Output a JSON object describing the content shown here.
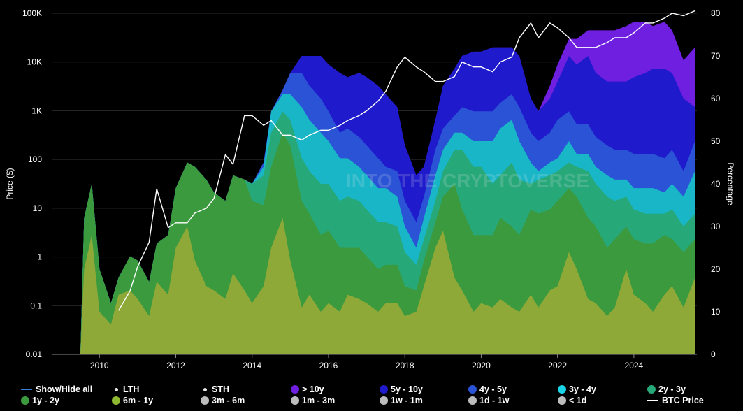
{
  "chart_data": {
    "type": "area",
    "y_left_label": "Price ($)",
    "y_right_label": "Percentage",
    "x_ticks": [
      "2010",
      "2012",
      "2014",
      "2016",
      "2018",
      "2020",
      "2022",
      "2024"
    ],
    "y_left_ticks": [
      "0.01",
      "0.1",
      "1",
      "10",
      "100",
      "1K",
      "10K",
      "100K"
    ],
    "y_right_ticks": [
      "0",
      "10",
      "20",
      "30",
      "40",
      "50",
      "60",
      "70",
      "80"
    ],
    "x_range": [
      2008.75,
      2025.65
    ],
    "y_right_range": [
      0,
      80
    ],
    "y_left_log_range": [
      -2,
      5
    ],
    "watermark": "INTO THE CRYPTOVERSE",
    "x_years": [
      2008.75,
      2009.5,
      2009.6,
      2009.8,
      2010.0,
      2010.3,
      2010.5,
      2010.8,
      2011.0,
      2011.3,
      2011.5,
      2011.8,
      2012.0,
      2012.3,
      2012.5,
      2012.8,
      2013.0,
      2013.3,
      2013.5,
      2013.8,
      2014.0,
      2014.3,
      2014.5,
      2014.8,
      2015.0,
      2015.3,
      2015.5,
      2015.8,
      2016.0,
      2016.3,
      2016.5,
      2016.8,
      2017.0,
      2017.3,
      2017.5,
      2017.8,
      2018.0,
      2018.3,
      2018.5,
      2018.8,
      2019.0,
      2019.3,
      2019.5,
      2019.8,
      2020.0,
      2020.3,
      2020.5,
      2020.8,
      2021.0,
      2021.3,
      2021.5,
      2021.8,
      2022.0,
      2022.3,
      2022.5,
      2022.8,
      2023.0,
      2023.3,
      2023.5,
      2023.8,
      2024.0,
      2024.3,
      2024.5,
      2024.8,
      2025.0,
      2025.3,
      2025.6
    ],
    "series": [
      {
        "name": "6m - 1y",
        "color": "#8fa938",
        "values": [
          0,
          0,
          20,
          28,
          10,
          7,
          14,
          15,
          13,
          9,
          17,
          14,
          25,
          30,
          22,
          16,
          15,
          13,
          19,
          15,
          12,
          16,
          25,
          32,
          22,
          11,
          14,
          10,
          12,
          10,
          14,
          13,
          12,
          10,
          12,
          12,
          9,
          10,
          16,
          25,
          29,
          18,
          15,
          10,
          12,
          11,
          13,
          11,
          10,
          14,
          11,
          15,
          16,
          24,
          20,
          13,
          12,
          9,
          11,
          20,
          14,
          12,
          10,
          14,
          16,
          11,
          18
        ]
      },
      {
        "name": "1y - 2y",
        "color": "#3c9a3e",
        "values": [
          0,
          0,
          32,
          40,
          20,
          12,
          18,
          23,
          22,
          17,
          26,
          28,
          39,
          45,
          44,
          41,
          38,
          36,
          42,
          41,
          36,
          35,
          44,
          52,
          49,
          36,
          33,
          28,
          29,
          25,
          25,
          25,
          23,
          20,
          21,
          21,
          16,
          15,
          22,
          31,
          37,
          40,
          34,
          28,
          28,
          28,
          32,
          30,
          28,
          34,
          33,
          34,
          36,
          39,
          37,
          32,
          30,
          25,
          27,
          30,
          27,
          26,
          26,
          28,
          27,
          24,
          27
        ]
      },
      {
        "name": "2y - 3y",
        "color": "#27a878",
        "values": [
          0,
          0,
          32,
          40,
          20,
          12,
          18,
          23,
          22,
          17,
          26,
          28,
          39,
          45,
          44,
          41,
          38,
          36,
          42,
          41,
          40,
          42,
          52,
          57,
          55,
          46,
          43,
          40,
          40,
          36,
          37,
          36,
          34,
          31,
          31,
          30,
          24,
          21,
          27,
          36,
          43,
          48,
          48,
          44,
          44,
          40,
          42,
          45,
          41,
          40,
          41,
          42,
          43,
          45,
          44,
          43,
          40,
          37,
          36,
          37,
          34,
          33,
          33,
          33,
          34,
          30,
          33
        ]
      },
      {
        "name": "3y - 4y",
        "color": "#19b6c8",
        "values": [
          0,
          0,
          32,
          40,
          20,
          12,
          18,
          23,
          22,
          17,
          26,
          28,
          39,
          45,
          44,
          41,
          38,
          36,
          42,
          41,
          40,
          44,
          57,
          61,
          61,
          58,
          55,
          52,
          50,
          46,
          46,
          44,
          42,
          39,
          39,
          37,
          30,
          25,
          32,
          42,
          48,
          52,
          52,
          50,
          50,
          50,
          53,
          55,
          50,
          45,
          43,
          45,
          46,
          50,
          47,
          47,
          44,
          42,
          41,
          41,
          39,
          39,
          39,
          38,
          40,
          37,
          43
        ]
      },
      {
        "name": "4y - 5y",
        "color": "#2a53d6",
        "values": [
          0,
          0,
          32,
          40,
          20,
          12,
          18,
          23,
          22,
          17,
          26,
          28,
          39,
          45,
          44,
          41,
          38,
          36,
          42,
          41,
          40,
          45,
          57,
          62,
          66,
          66,
          63,
          60,
          57,
          52,
          53,
          51,
          49,
          46,
          44,
          43,
          36,
          31,
          37,
          48,
          53,
          56,
          58,
          57,
          57,
          57,
          59,
          61,
          58,
          52,
          50,
          52,
          55,
          57,
          54,
          54,
          51,
          49,
          48,
          48,
          47,
          47,
          47,
          46,
          48,
          43,
          50
        ]
      },
      {
        "name": "5y - 10y",
        "color": "#1f1acc",
        "values": [
          0,
          0,
          32,
          40,
          20,
          12,
          18,
          23,
          22,
          17,
          26,
          28,
          39,
          45,
          44,
          41,
          38,
          36,
          42,
          41,
          40,
          45,
          57,
          62,
          66,
          70,
          70,
          70,
          68,
          66,
          65,
          66,
          65,
          63,
          61,
          58,
          49,
          42,
          44,
          55,
          63,
          67,
          70,
          71,
          71,
          72,
          72,
          72,
          70,
          60,
          57,
          60,
          64,
          70,
          68,
          70,
          66,
          64,
          64,
          64,
          65,
          66,
          67,
          67,
          66,
          60,
          58
        ]
      },
      {
        "name": "> 10y",
        "color": "#6f1fe0",
        "values": [
          0,
          0,
          32,
          40,
          20,
          12,
          18,
          23,
          22,
          17,
          26,
          28,
          39,
          45,
          44,
          41,
          38,
          36,
          42,
          41,
          40,
          45,
          57,
          62,
          66,
          70,
          70,
          70,
          68,
          66,
          65,
          66,
          65,
          63,
          61,
          58,
          49,
          42,
          44,
          55,
          63,
          67,
          70,
          71,
          71,
          72,
          72,
          72,
          70,
          60,
          57,
          63,
          68,
          74,
          74,
          76,
          76,
          76,
          76,
          77,
          78,
          78,
          77,
          78,
          76,
          69,
          72
        ]
      }
    ],
    "btc_price_log": [
      null,
      null,
      null,
      null,
      null,
      null,
      -1.1,
      -0.7,
      -0.2,
      0.3,
      1.4,
      0.6,
      0.7,
      0.7,
      0.9,
      1.0,
      1.2,
      2.1,
      1.9,
      2.9,
      2.9,
      2.7,
      2.8,
      2.5,
      2.5,
      2.4,
      2.5,
      2.6,
      2.6,
      2.7,
      2.8,
      2.9,
      3.0,
      3.2,
      3.4,
      3.9,
      4.1,
      3.9,
      3.8,
      3.6,
      3.6,
      3.7,
      4.0,
      3.9,
      3.9,
      3.8,
      4.0,
      4.1,
      4.5,
      4.8,
      4.5,
      4.8,
      4.7,
      4.5,
      4.3,
      4.3,
      4.3,
      4.4,
      4.5,
      4.5,
      4.6,
      4.8,
      4.8,
      4.9,
      5.0,
      4.95,
      5.05
    ]
  },
  "legend": [
    {
      "label": "Show/Hide all",
      "marker": "line",
      "color": "#3a7fd5"
    },
    {
      "label": "LTH",
      "marker": "dot",
      "color": "#e8e8e8"
    },
    {
      "label": "STH",
      "marker": "dot",
      "color": "#e8e8e8"
    },
    {
      "label": "> 10y",
      "marker": "circle",
      "color": "#6f1fe0"
    },
    {
      "label": "5y - 10y",
      "marker": "circle",
      "color": "#1f1acc"
    },
    {
      "label": "4y - 5y",
      "marker": "circle",
      "color": "#2a53d6"
    },
    {
      "label": "3y - 4y",
      "marker": "circle",
      "color": "#19d4e6"
    },
    {
      "label": "2y - 3y",
      "marker": "circle",
      "color": "#27a878"
    },
    {
      "label": "1y - 2y",
      "marker": "circle",
      "color": "#3c9a3e"
    },
    {
      "label": "6m - 1y",
      "marker": "circle",
      "color": "#8fb832"
    },
    {
      "label": "3m - 6m",
      "marker": "circle",
      "color": "#bdbdbd"
    },
    {
      "label": "1m - 3m",
      "marker": "circle",
      "color": "#bdbdbd"
    },
    {
      "label": "1w - 1m",
      "marker": "circle",
      "color": "#bdbdbd"
    },
    {
      "label": "1d - 1w",
      "marker": "circle",
      "color": "#bdbdbd"
    },
    {
      "label": "< 1d",
      "marker": "circle",
      "color": "#bdbdbd"
    },
    {
      "label": "BTC Price",
      "marker": "line",
      "color": "#ffffff"
    }
  ]
}
